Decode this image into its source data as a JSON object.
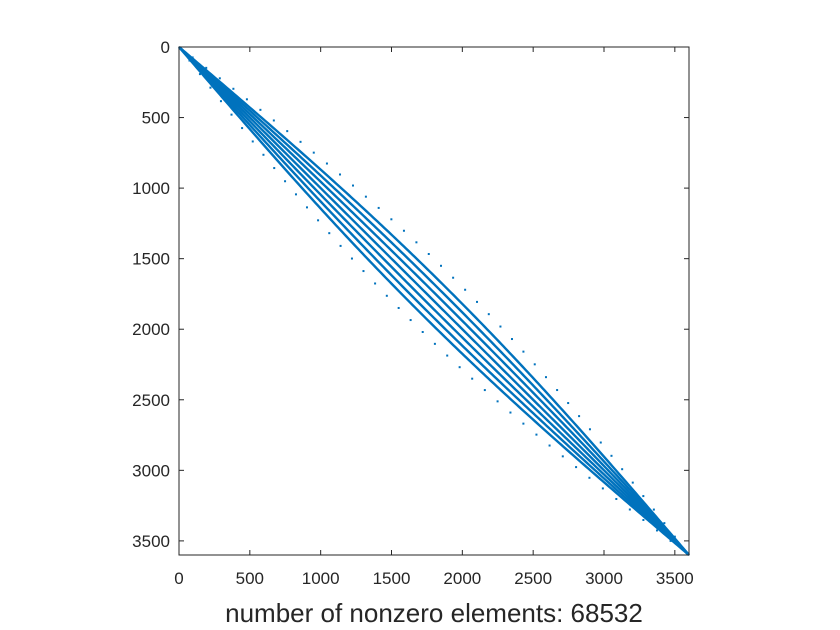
{
  "chart_data": {
    "type": "scatter",
    "plot_kind": "sparsity-pattern",
    "title": "",
    "xlabel": "number of nonzero elements: 68532",
    "ylabel": "",
    "xlim": [
      0,
      3600
    ],
    "ylim": [
      0,
      3600
    ],
    "y_reversed": true,
    "grid": false,
    "legend": "none",
    "marker_color": "#0072BD",
    "xticks": [
      0,
      500,
      1000,
      1500,
      2000,
      2500,
      3000,
      3500
    ],
    "yticks": [
      0,
      500,
      1000,
      1500,
      2000,
      2500,
      3000,
      3500
    ],
    "xtick_labels": [
      "0",
      "500",
      "1000",
      "1500",
      "2000",
      "2500",
      "3000",
      "3500"
    ],
    "ytick_labels": [
      "0",
      "500",
      "1000",
      "1500",
      "2000",
      "2500",
      "3000",
      "3500"
    ],
    "nonzero_count": 68532,
    "matrix_size": 3600,
    "bands": [
      {
        "kind": "solid",
        "offset": 0
      },
      {
        "kind": "solid",
        "offset": 60
      },
      {
        "kind": "solid",
        "offset": -60
      },
      {
        "kind": "solid",
        "offset": 120
      },
      {
        "kind": "solid",
        "offset": -120
      },
      {
        "kind": "solid",
        "offset": 180
      },
      {
        "kind": "solid",
        "offset": -180
      },
      {
        "kind": "dotted",
        "offset": 300,
        "spacing": 85
      },
      {
        "kind": "dotted",
        "offset": -300,
        "spacing": 85
      }
    ]
  }
}
